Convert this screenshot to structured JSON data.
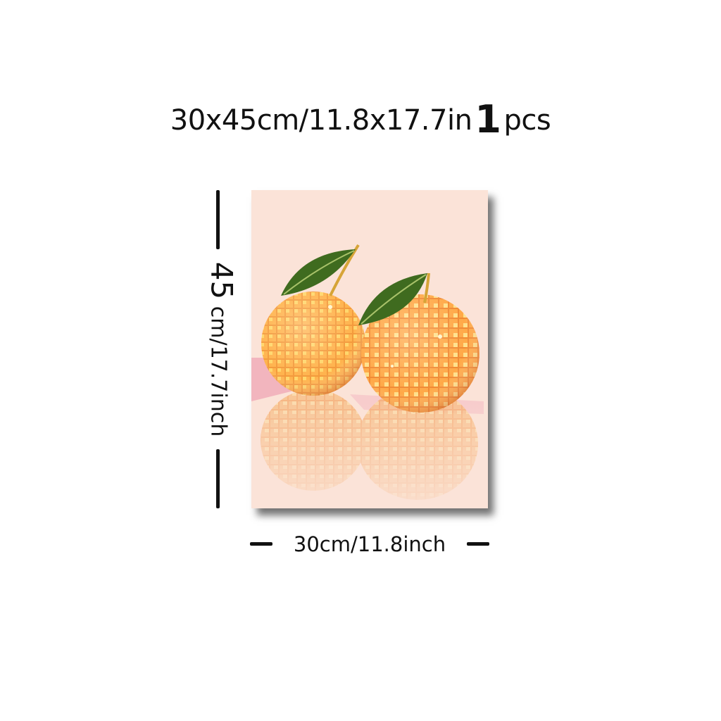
{
  "title": {
    "size_text": "30x45cm/11.8x17.7in",
    "quantity": "1",
    "unit": "pcs"
  },
  "dimensions": {
    "width_label": "30cm/11.8inch",
    "height_number": "45",
    "height_unit_text": "cm/17.7inch"
  },
  "poster": {
    "background_color": "#fbe3d8",
    "artwork": "disco-ball-oranges"
  }
}
